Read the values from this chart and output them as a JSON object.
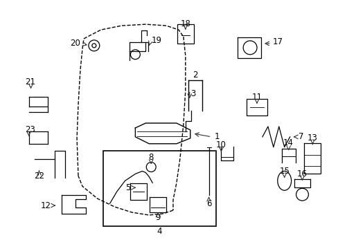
{
  "bg_color": "#ffffff",
  "fig_width": 4.89,
  "fig_height": 3.6,
  "dpi": 100,
  "font_size": 8.5,
  "lc": "#000000"
}
